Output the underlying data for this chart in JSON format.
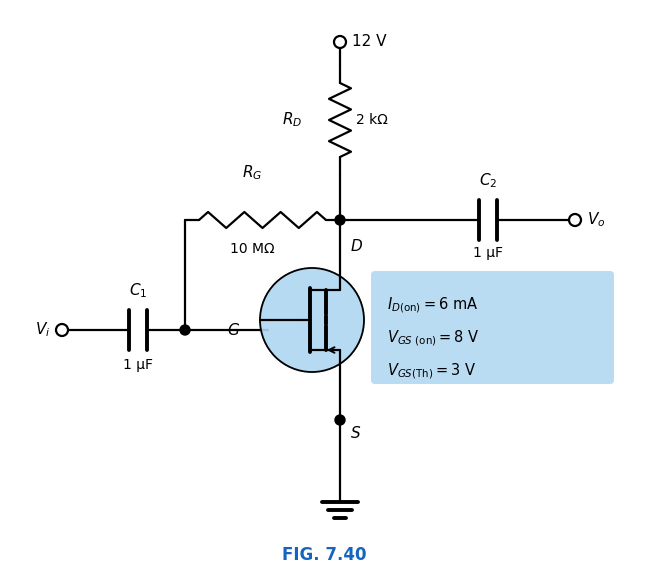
{
  "title": "FIG. 7.40",
  "title_color": "#1565C0",
  "background_color": "#ffffff",
  "vdd": "12 V",
  "rd_value": "2 kΩ",
  "rg_value": "10 MΩ",
  "c1_value": "1 μF",
  "c2_value": "1 μF",
  "mosfet_circle_color": "#AED6F1",
  "info_box_color": "#AED6F1",
  "line_color": "#000000",
  "text_color": "#000000",
  "lw": 1.6,
  "lw_thick": 2.8
}
